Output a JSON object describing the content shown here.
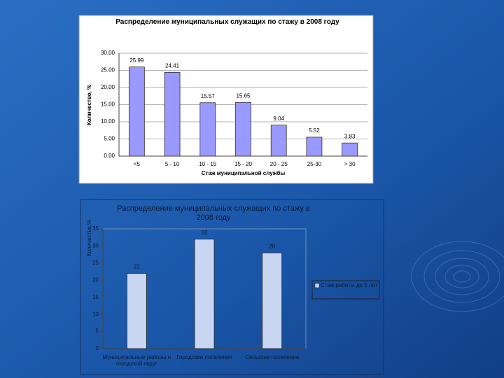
{
  "chart_data": [
    {
      "type": "bar",
      "title": "Распределение муниципальных служащих по стажу в 2008 году",
      "y_label": "Количество, %",
      "x_label": "Стаж муниципальной службы",
      "categories": [
        "<5",
        "5 - 10",
        "10 - 15",
        "15 - 20",
        "20 - 25",
        "25-30",
        "> 30"
      ],
      "values": [
        25.99,
        24.41,
        15.57,
        15.65,
        9.04,
        5.52,
        3.83
      ],
      "color": "#9999ff",
      "ylim": [
        0,
        30
      ],
      "yticks": [
        {
          "value": 0,
          "label": "0.00"
        },
        {
          "value": 5,
          "label": "5.00"
        },
        {
          "value": 10,
          "label": "10.00"
        },
        {
          "value": 15,
          "label": "15.00"
        },
        {
          "value": 20,
          "label": "20.00"
        },
        {
          "value": 25,
          "label": "25.00"
        },
        {
          "value": 30,
          "label": "30.00"
        }
      ],
      "grid": true
    },
    {
      "type": "bar",
      "title": "Распределение муниципальных служащих по стажу в 2008 году",
      "y_label": "Количество,%",
      "categories": [
        "Муниципальные районы и городской округ",
        "Городские поселения",
        "Сельские поселения"
      ],
      "series": [
        {
          "name": "Стаж работы до 5 лет",
          "color": "#c9d6f2",
          "values": [
            22,
            32,
            28
          ]
        }
      ],
      "ylim": [
        0,
        35
      ],
      "yticks": [
        0,
        5,
        10,
        15,
        20,
        25,
        30,
        35
      ],
      "grid": false,
      "legend": "right"
    }
  ]
}
